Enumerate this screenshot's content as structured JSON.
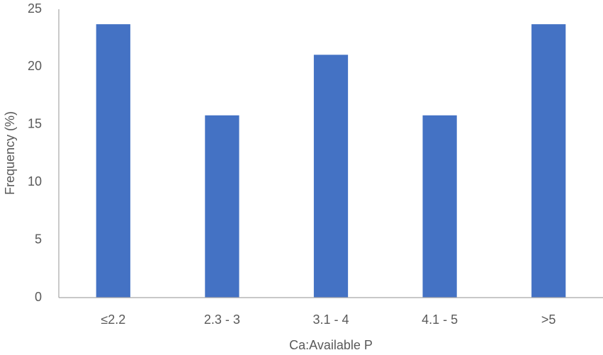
{
  "chart_data": {
    "type": "bar",
    "x_label": "Ca:Available P",
    "y_label": "Frequency (%)",
    "categories": [
      "≤2.2",
      "2.3 - 3",
      "3.1 - 4",
      "4.1 - 5",
      ">5"
    ],
    "values": [
      23.7,
      15.8,
      21.05,
      15.8,
      23.7
    ],
    "color": "#4472c4",
    "ylim": [
      0,
      25
    ],
    "yticks": [
      0,
      5,
      10,
      15,
      20,
      25
    ],
    "grid": false
  }
}
